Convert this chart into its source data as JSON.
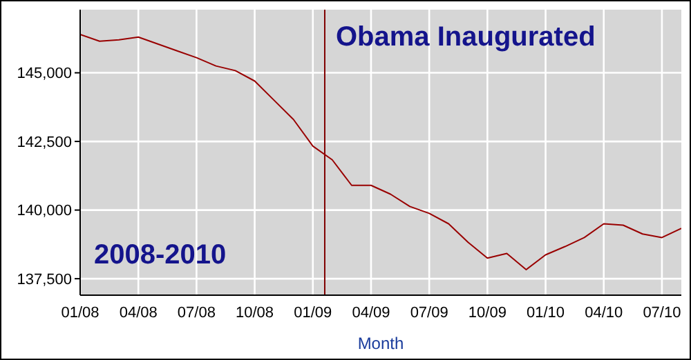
{
  "chart_data": {
    "type": "line",
    "xlabel": "Month",
    "x": [
      "2008-01",
      "2008-02",
      "2008-03",
      "2008-04",
      "2008-05",
      "2008-06",
      "2008-07",
      "2008-08",
      "2008-09",
      "2008-10",
      "2008-11",
      "2008-12",
      "2009-01",
      "2009-02",
      "2009-03",
      "2009-04",
      "2009-05",
      "2009-06",
      "2009-07",
      "2009-08",
      "2009-09",
      "2009-10",
      "2009-11",
      "2009-12",
      "2010-01",
      "2010-02",
      "2010-03",
      "2010-04",
      "2010-05",
      "2010-06",
      "2010-07",
      "2010-08"
    ],
    "series": [
      {
        "color": "#990000",
        "values": [
          146400,
          146150,
          146200,
          146300,
          146050,
          145800,
          145550,
          145250,
          145080,
          144700,
          144000,
          143300,
          142330,
          141830,
          140900,
          140900,
          140580,
          140130,
          139880,
          139500,
          138830,
          138250,
          138420,
          137830,
          138370,
          138670,
          139000,
          139500,
          139450,
          139130,
          139000,
          139330
        ]
      }
    ],
    "xlim": [
      "2008-01",
      "2010-08"
    ],
    "xticks": [
      {
        "value": "2008-01",
        "label": "01/08"
      },
      {
        "value": "2008-04",
        "label": "04/08"
      },
      {
        "value": "2008-07",
        "label": "07/08"
      },
      {
        "value": "2008-10",
        "label": "10/08"
      },
      {
        "value": "2009-01",
        "label": "01/09"
      },
      {
        "value": "2009-04",
        "label": "04/09"
      },
      {
        "value": "2009-07",
        "label": "07/09"
      },
      {
        "value": "2009-10",
        "label": "10/09"
      },
      {
        "value": "2010-01",
        "label": "01/10"
      },
      {
        "value": "2010-04",
        "label": "04/10"
      },
      {
        "value": "2010-07",
        "label": "07/10"
      }
    ],
    "ylim": [
      136900,
      147300
    ],
    "yticks": [
      {
        "value": 137500,
        "label": "137,500"
      },
      {
        "value": 140000,
        "label": "140,000"
      },
      {
        "value": 142500,
        "label": "142,500"
      },
      {
        "value": 145000,
        "label": "145,000"
      }
    ],
    "grid": true,
    "marker": "none",
    "line_style": "solid",
    "ref_lines": [
      {
        "axis": "x",
        "value": "2009-01-20",
        "label": "Obama Inaugurated",
        "color": "#800000"
      }
    ],
    "annotations": [
      "2008-2010"
    ]
  }
}
